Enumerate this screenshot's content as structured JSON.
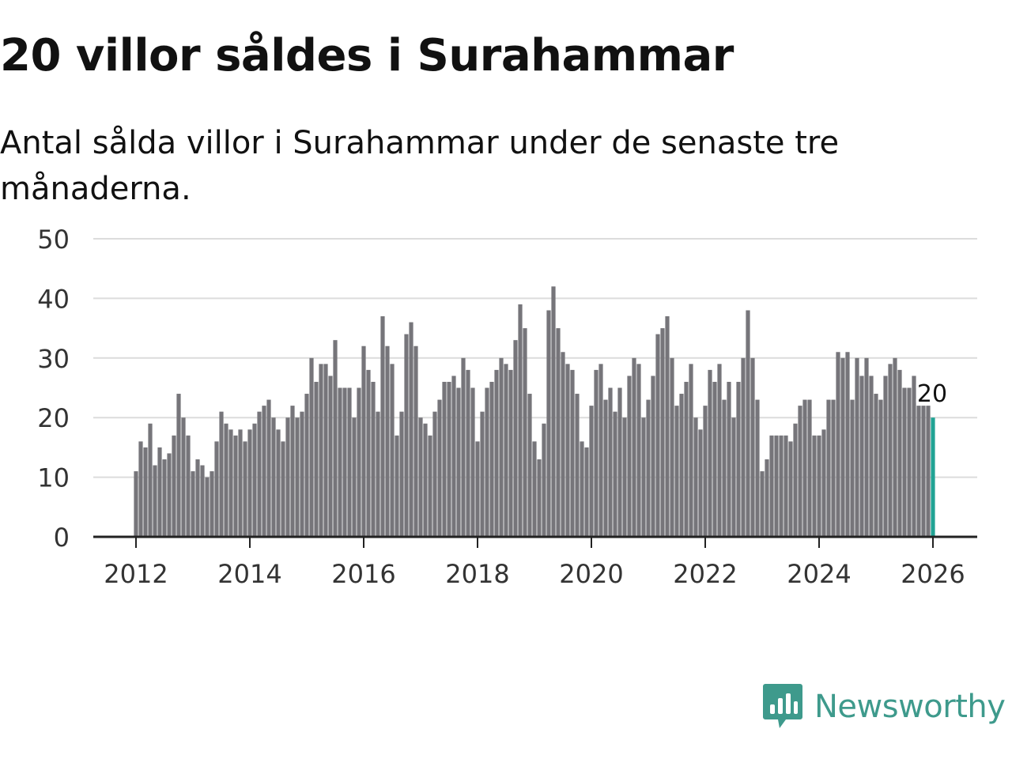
{
  "title": "20 villor såldes i Surahammar",
  "subtitle": "Antal sålda villor i Surahammar under de senaste tre månaderna.",
  "brand": {
    "name": "Newsworthy",
    "color": "#3e9a8c"
  },
  "colors": {
    "bar": "#76757a",
    "highlight": "#21a394",
    "grid": "#dcdcdc",
    "axis": "#222222",
    "text": "#333333"
  },
  "chart_data": {
    "type": "bar",
    "title": "Antal sålda villor i Surahammar under de senaste tre månaderna.",
    "xlabel": "",
    "ylabel": "",
    "ylim": [
      0,
      50
    ],
    "yticks": [
      0,
      10,
      20,
      30,
      40,
      50
    ],
    "xticks": [
      "2012",
      "2014",
      "2016",
      "2018",
      "2020",
      "2022",
      "2024",
      "2026"
    ],
    "x_start": "2012-01",
    "x_step": "month",
    "grid": true,
    "last_value_label": "20",
    "values": [
      11,
      16,
      15,
      19,
      12,
      15,
      13,
      14,
      17,
      24,
      20,
      17,
      11,
      13,
      12,
      10,
      11,
      16,
      21,
      19,
      18,
      17,
      18,
      16,
      18,
      19,
      21,
      22,
      23,
      20,
      18,
      16,
      20,
      22,
      20,
      21,
      24,
      30,
      26,
      29,
      29,
      27,
      33,
      25,
      25,
      25,
      20,
      25,
      32,
      28,
      26,
      21,
      37,
      32,
      29,
      17,
      21,
      34,
      36,
      32,
      20,
      19,
      17,
      21,
      23,
      26,
      26,
      27,
      25,
      30,
      28,
      25,
      16,
      21,
      25,
      26,
      28,
      30,
      29,
      28,
      33,
      39,
      35,
      24,
      16,
      13,
      19,
      38,
      42,
      35,
      31,
      29,
      28,
      24,
      16,
      15,
      22,
      28,
      29,
      23,
      25,
      21,
      25,
      20,
      27,
      30,
      29,
      20,
      23,
      27,
      34,
      35,
      37,
      30,
      22,
      24,
      26,
      29,
      20,
      18,
      22,
      28,
      26,
      29,
      23,
      26,
      20,
      26,
      30,
      38,
      30,
      23,
      11,
      13,
      17,
      17,
      17,
      17,
      16,
      19,
      22,
      23,
      23,
      17,
      17,
      18,
      23,
      23,
      31,
      30,
      31,
      23,
      30,
      27,
      30,
      27,
      24,
      23,
      27,
      29,
      30,
      28,
      25,
      25,
      27,
      22,
      22,
      22,
      20
    ]
  }
}
